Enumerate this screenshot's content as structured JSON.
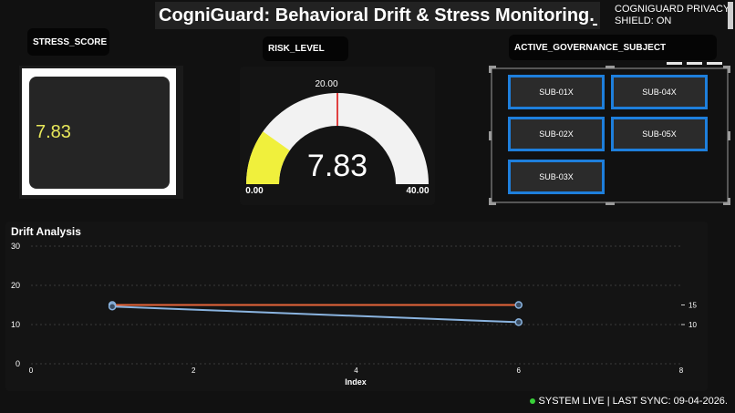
{
  "header": {
    "title": "CogniGuard: Behavioral Drift & Stress Monitoring.",
    "privacy_line1": "COGNIGUARD PRIVACY",
    "privacy_line2": "SHIELD: ON"
  },
  "stress": {
    "label": "STRESS_SCORE",
    "value": "7.83",
    "value_color": "#e8e85a"
  },
  "risk": {
    "label": "RISK_LEVEL",
    "value": "7.83",
    "min_label": "0.00",
    "max_label": "40.00",
    "target_label": "20.00",
    "gauge_value": 7.83,
    "gauge_min": 0,
    "gauge_max": 40,
    "gauge_target": 20,
    "fill_color": "#f0f03c",
    "track_color": "#f2f2f2",
    "target_color": "#e04040"
  },
  "governance": {
    "label": "ACTIVE_GOVERNANCE_SUBJECT",
    "subjects": [
      "SUB-01X",
      "SUB-04X",
      "SUB-02X",
      "SUB-05X",
      "SUB-03X"
    ],
    "border_color": "#1e7fdc"
  },
  "chart_data": {
    "type": "line",
    "title": "Drift Analysis",
    "xlabel": "Index",
    "ylabel": "",
    "xlim": [
      0,
      8
    ],
    "ylim": [
      0,
      30
    ],
    "y2lim": [
      10,
      15
    ],
    "x_ticks": [
      "0",
      "2",
      "4",
      "6",
      "8"
    ],
    "y_ticks": [
      "0",
      "10",
      "20",
      "30"
    ],
    "y2_ticks": [
      "10",
      "15"
    ],
    "grid": true,
    "series": [
      {
        "color": "#e8663a",
        "axis": "y2",
        "x": [
          1,
          6
        ],
        "y": [
          15,
          15
        ]
      },
      {
        "color": "#8ab4e0",
        "axis": "y2",
        "x": [
          1,
          6
        ],
        "y": [
          14.6,
          10.6
        ]
      }
    ]
  },
  "footer": {
    "status": "SYSTEM LIVE | LAST SYNC: 09-04-2026.",
    "status_color": "#38d038"
  }
}
